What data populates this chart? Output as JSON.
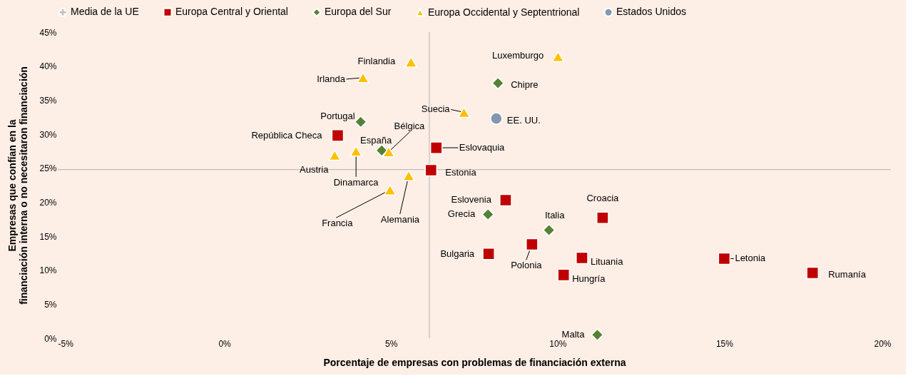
{
  "chart_data": {
    "type": "scatter",
    "xlabel": "Porcentaje de empresas con problemas de financiación externa",
    "ylabel": "Empresas que confían en la\nfinanciación interna o no necesitaron financiación",
    "xlim": [
      -5,
      20
    ],
    "ylim": [
      0,
      45
    ],
    "xticks": [
      {
        "value": -5,
        "label": "-5%"
      },
      {
        "value": 0,
        "label": "0%"
      },
      {
        "value": 5,
        "label": "5%"
      },
      {
        "value": 10,
        "label": "10%"
      },
      {
        "value": 15,
        "label": "15%"
      },
      {
        "value": 20,
        "label": "20%"
      }
    ],
    "yticks": [
      {
        "value": 0,
        "label": "0%"
      },
      {
        "value": 5,
        "label": "5%"
      },
      {
        "value": 10,
        "label": "10%"
      },
      {
        "value": 15,
        "label": "15%"
      },
      {
        "value": 20,
        "label": "20%"
      },
      {
        "value": 25,
        "label": "25%"
      },
      {
        "value": 30,
        "label": "30%"
      },
      {
        "value": 35,
        "label": "35%"
      },
      {
        "value": 40,
        "label": "40%"
      },
      {
        "value": 45,
        "label": "45%"
      }
    ],
    "grid": false,
    "legend": "top",
    "ref_lines": [
      {
        "axis": "x",
        "value": 6.15,
        "label": "Media de la UE",
        "color": "#bfbfbf"
      },
      {
        "axis": "y",
        "value": 24.8,
        "color": "#bfbfbf"
      }
    ],
    "series": [
      {
        "name": "Europa Central y Oriental",
        "color": "#c00000",
        "marker": "square",
        "x": [
          3.4,
          6.36,
          6.2,
          8.44,
          11.35,
          7.93,
          9.23,
          10.73,
          10.18,
          15.0,
          17.65
        ],
        "values": [
          29.8,
          28.0,
          24.7,
          20.3,
          17.7,
          12.4,
          13.8,
          11.8,
          9.3,
          11.7,
          9.6
        ]
      },
      {
        "name": "Europa del Sur",
        "color": "#548235",
        "marker": "diamond",
        "x": [
          8.21,
          4.09,
          4.72,
          7.91,
          9.74,
          11.19
        ],
        "values": [
          37.5,
          31.8,
          27.6,
          18.2,
          15.9,
          0.5
        ]
      },
      {
        "name": "Europa Occidental y Septentrional",
        "color": "#ffc000",
        "marker": "triangle",
        "x": [
          5.6,
          4.16,
          10.01,
          7.19,
          4.93,
          3.31,
          3.95,
          5.53,
          4.97
        ],
        "values": [
          40.6,
          38.3,
          41.4,
          33.2,
          27.4,
          26.9,
          27.5,
          23.9,
          21.8
        ]
      },
      {
        "name": "Estados Unidos",
        "color": "#8497b0",
        "marker": "circle",
        "x": [
          8.16
        ],
        "values": [
          32.3
        ]
      }
    ],
    "annotations": [
      {
        "text": "República Checa",
        "x": 3.4,
        "y": 29.8
      },
      {
        "text": "Eslovaquia",
        "x": 6.36,
        "y": 28.0
      },
      {
        "text": "Estonia",
        "x": 6.2,
        "y": 24.7
      },
      {
        "text": "Eslovenia",
        "x": 8.44,
        "y": 20.3
      },
      {
        "text": "Croacia",
        "x": 11.35,
        "y": 17.7
      },
      {
        "text": "Bulgaria",
        "x": 7.93,
        "y": 12.4
      },
      {
        "text": "Polonia",
        "x": 9.23,
        "y": 13.8
      },
      {
        "text": "Lituania",
        "x": 10.73,
        "y": 11.8
      },
      {
        "text": "Hungría",
        "x": 10.18,
        "y": 9.3
      },
      {
        "text": "Letonia",
        "x": 15.0,
        "y": 11.7
      },
      {
        "text": "Rumanía",
        "x": 17.65,
        "y": 9.6
      },
      {
        "text": "Chipre",
        "x": 8.21,
        "y": 37.5
      },
      {
        "text": "Portugal",
        "x": 4.09,
        "y": 31.8
      },
      {
        "text": "España",
        "x": 4.72,
        "y": 27.6
      },
      {
        "text": "Grecia",
        "x": 7.91,
        "y": 18.2
      },
      {
        "text": "Italia",
        "x": 9.74,
        "y": 15.9
      },
      {
        "text": "Malta",
        "x": 11.19,
        "y": 0.5
      },
      {
        "text": "Finlandia",
        "x": 5.6,
        "y": 40.6
      },
      {
        "text": "Irlanda",
        "x": 4.16,
        "y": 38.3
      },
      {
        "text": "Luxemburgo",
        "x": 10.01,
        "y": 41.4
      },
      {
        "text": "Suecia",
        "x": 7.19,
        "y": 33.2
      },
      {
        "text": "Bélgica",
        "x": 4.93,
        "y": 27.4
      },
      {
        "text": "Austria",
        "x": 3.31,
        "y": 26.9
      },
      {
        "text": "Dinamarca",
        "x": 3.95,
        "y": 27.5
      },
      {
        "text": "Alemania",
        "x": 5.53,
        "y": 23.9
      },
      {
        "text": "Francia",
        "x": 4.97,
        "y": 21.8
      },
      {
        "text": "EE. UU.",
        "x": 8.16,
        "y": 32.3
      }
    ]
  }
}
